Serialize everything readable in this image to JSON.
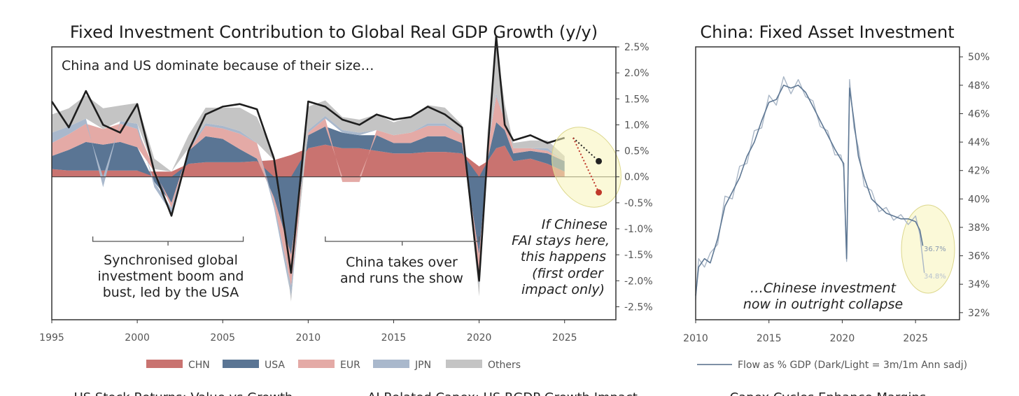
{
  "chart_data": [
    {
      "type": "area",
      "title": "Fixed Investment Contribution to Global Real GDP Growth (y/y)",
      "xlabel": "",
      "ylabel": "",
      "xlim": [
        1995,
        2028
      ],
      "ylim": [
        -2.75,
        2.5
      ],
      "x_ticks": [
        "1995",
        "2000",
        "2005",
        "2010",
        "2015",
        "2020",
        "2025"
      ],
      "y_ticks": [
        "2.5%",
        "2.0%",
        "1.5%",
        "1.0%",
        "0.5%",
        "0.0%",
        "-0.5%",
        "-1.0%",
        "-1.5%",
        "-2.0%",
        "-2.5%"
      ],
      "x": [
        1995,
        1996,
        1997,
        1998,
        1999,
        2000,
        2001,
        2002,
        2003,
        2004,
        2005,
        2006,
        2007,
        2008,
        2009,
        2010,
        2011,
        2012,
        2013,
        2014,
        2015,
        2016,
        2017,
        2018,
        2019,
        2020,
        2020.5,
        2021,
        2021.5,
        2022,
        2023,
        2024,
        2025
      ],
      "series": [
        {
          "name": "CHN",
          "color": "#c97370",
          "values": [
            0.15,
            0.12,
            0.12,
            0.12,
            0.12,
            0.12,
            0.1,
            0.1,
            0.25,
            0.28,
            0.28,
            0.28,
            0.3,
            0.32,
            0.42,
            0.55,
            0.62,
            0.55,
            0.55,
            0.5,
            0.45,
            0.45,
            0.48,
            0.48,
            0.45,
            0.2,
            0.3,
            0.55,
            0.6,
            0.3,
            0.35,
            0.25,
            0.1
          ]
        },
        {
          "name": "USA",
          "color": "#5a7594",
          "values": [
            0.25,
            0.4,
            0.55,
            0.5,
            0.55,
            0.45,
            -0.1,
            -0.5,
            0.25,
            0.5,
            0.45,
            0.25,
            0.05,
            -0.4,
            -1.5,
            0.25,
            0.35,
            0.3,
            0.25,
            0.3,
            0.2,
            0.2,
            0.3,
            0.3,
            0.2,
            -1.5,
            0.05,
            0.5,
            0.3,
            0.15,
            0.15,
            0.2,
            0.2
          ]
        },
        {
          "name": "EUR",
          "color": "#e4aaa6",
          "values": [
            0.25,
            0.3,
            0.35,
            0.3,
            0.35,
            0.35,
            0.05,
            -0.1,
            0.0,
            0.2,
            0.2,
            0.3,
            0.3,
            -0.1,
            -0.6,
            0.05,
            0.15,
            -0.1,
            -0.1,
            0.1,
            0.15,
            0.2,
            0.2,
            0.2,
            0.15,
            -0.5,
            0.2,
            0.5,
            0.2,
            0.1,
            0.05,
            0.05,
            0.0
          ]
        },
        {
          "name": "JPN",
          "color": "#a9b8cc",
          "values": [
            0.2,
            0.15,
            0.1,
            -0.2,
            0.05,
            0.1,
            -0.1,
            -0.1,
            0.05,
            0.05,
            0.05,
            0.05,
            0.0,
            -0.1,
            -0.2,
            0.05,
            0.05,
            0.05,
            0.05,
            0.0,
            0.0,
            0.0,
            0.05,
            0.05,
            0.0,
            -0.1,
            0.05,
            0.05,
            0.0,
            0.0,
            0.0,
            0.05,
            0.0
          ]
        },
        {
          "name": "Others",
          "color": "#c4c4c4",
          "values": [
            0.35,
            0.35,
            0.45,
            0.4,
            0.3,
            0.4,
            0.2,
            0.0,
            0.25,
            0.3,
            0.35,
            0.45,
            0.5,
            0.1,
            -0.1,
            0.45,
            0.3,
            0.25,
            0.25,
            0.3,
            0.25,
            0.3,
            0.35,
            0.3,
            0.2,
            -0.2,
            0.3,
            1.0,
            0.3,
            0.1,
            0.15,
            0.15,
            0.1
          ]
        }
      ],
      "total_line": {
        "name": "Total",
        "color": "#1e1e1e",
        "values": [
          1.45,
          0.95,
          1.65,
          1.0,
          0.85,
          1.4,
          0.1,
          -0.75,
          0.5,
          1.2,
          1.35,
          1.4,
          1.3,
          0.35,
          -1.85,
          1.45,
          1.35,
          1.1,
          1.0,
          1.2,
          1.1,
          1.15,
          1.35,
          1.2,
          0.95,
          -2.0,
          0.5,
          2.7,
          1.0,
          0.7,
          0.8,
          0.65,
          0.75
        ]
      },
      "projection": [
        {
          "name": "flat",
          "color": "#222222",
          "from": [
            2025.5,
            0.75
          ],
          "to": [
            2027,
            0.3
          ]
        },
        {
          "name": "decline",
          "color": "#c0392b",
          "from": [
            2025.5,
            0.75
          ],
          "to": [
            2027,
            -0.3
          ]
        }
      ],
      "annotations": [
        {
          "text": "China and US dominate because of their size…"
        },
        {
          "text": [
            "Synchronised global",
            "investment boom and",
            "bust, led by the USA"
          ],
          "bracket": [
            1997.4,
            2006.2
          ]
        },
        {
          "text": [
            "China takes over",
            "and runs the show"
          ],
          "bracket": [
            2011.0,
            2020.0
          ]
        },
        {
          "text": [
            "If Chinese",
            "FAI stays here,",
            "this happens",
            "(first order",
            "impact only)"
          ]
        }
      ]
    },
    {
      "type": "line",
      "title": "China: Fixed Asset Investment",
      "xlabel": "",
      "ylabel": "",
      "xlim": [
        2010,
        2028
      ],
      "ylim": [
        31.5,
        50.7
      ],
      "x_ticks": [
        "2010",
        "2015",
        "2020",
        "2025"
      ],
      "y_ticks": [
        "50%",
        "48%",
        "46%",
        "44%",
        "42%",
        "40%",
        "38%",
        "36%",
        "34%",
        "32%"
      ],
      "series": [
        {
          "name": "Flow as % GDP (Dark/Light = 3m/1m Ann sadj)",
          "role": "3m",
          "color": "#5f7894",
          "x": [
            2010.0,
            2010.2,
            2010.6,
            2011.0,
            2011.5,
            2012.0,
            2012.5,
            2013.0,
            2013.5,
            2014.0,
            2014.5,
            2015.0,
            2015.5,
            2016.0,
            2016.5,
            2017.0,
            2017.5,
            2018.0,
            2018.5,
            2019.0,
            2019.5,
            2019.9,
            2020.1,
            2020.3,
            2020.5,
            2020.8,
            2021.1,
            2021.5,
            2022.0,
            2022.5,
            2023.0,
            2023.5,
            2024.0,
            2024.5,
            2025.0,
            2025.3,
            2025.5
          ],
          "values": [
            33.2,
            35.2,
            35.8,
            35.5,
            37.2,
            39.5,
            40.5,
            41.5,
            43.0,
            44.0,
            45.5,
            46.8,
            47.0,
            48.0,
            47.8,
            48.0,
            47.5,
            46.5,
            45.5,
            44.5,
            43.5,
            42.8,
            42.5,
            35.8,
            47.8,
            45.5,
            43.0,
            41.5,
            40.0,
            39.5,
            39.0,
            38.8,
            38.6,
            38.6,
            38.4,
            37.8,
            36.7
          ]
        },
        {
          "name": "Flow as % GDP (Dark/Light = 3m/1m Ann sadj)",
          "role": "1m",
          "color": "#a9b6c6",
          "x": [
            2010.0,
            2010.2,
            2010.6,
            2011.0,
            2011.5,
            2012.0,
            2012.5,
            2013.0,
            2013.5,
            2014.0,
            2014.5,
            2015.0,
            2015.5,
            2016.0,
            2016.5,
            2017.0,
            2017.5,
            2018.0,
            2018.5,
            2019.0,
            2019.5,
            2019.9,
            2020.1,
            2020.3,
            2020.5,
            2020.8,
            2021.1,
            2021.5,
            2022.0,
            2022.5,
            2023.0,
            2023.5,
            2024.0,
            2024.5,
            2025.0,
            2025.3,
            2025.6
          ],
          "values": [
            32.9,
            35.8,
            35.2,
            36.2,
            36.8,
            40.2,
            40.0,
            42.3,
            42.5,
            44.8,
            45.0,
            47.3,
            46.6,
            48.6,
            47.4,
            48.4,
            47.2,
            46.9,
            45.1,
            44.8,
            43.1,
            43.1,
            42.2,
            35.6,
            48.4,
            45.0,
            43.6,
            40.9,
            40.6,
            39.1,
            39.4,
            38.5,
            38.9,
            38.2,
            38.8,
            37.5,
            34.8
          ]
        }
      ],
      "labels": [
        "36.7%",
        "34.8%"
      ],
      "annotations": [
        {
          "text": [
            "…Chinese investment",
            "now in outright collapse"
          ]
        }
      ]
    }
  ],
  "below_cutoff": {
    "titles": [
      "US Stock Returns: Value vs Growth",
      "AI Related Capex: US RGDP Growth Impact",
      "Capex Cycles Enhance Margins"
    ]
  }
}
